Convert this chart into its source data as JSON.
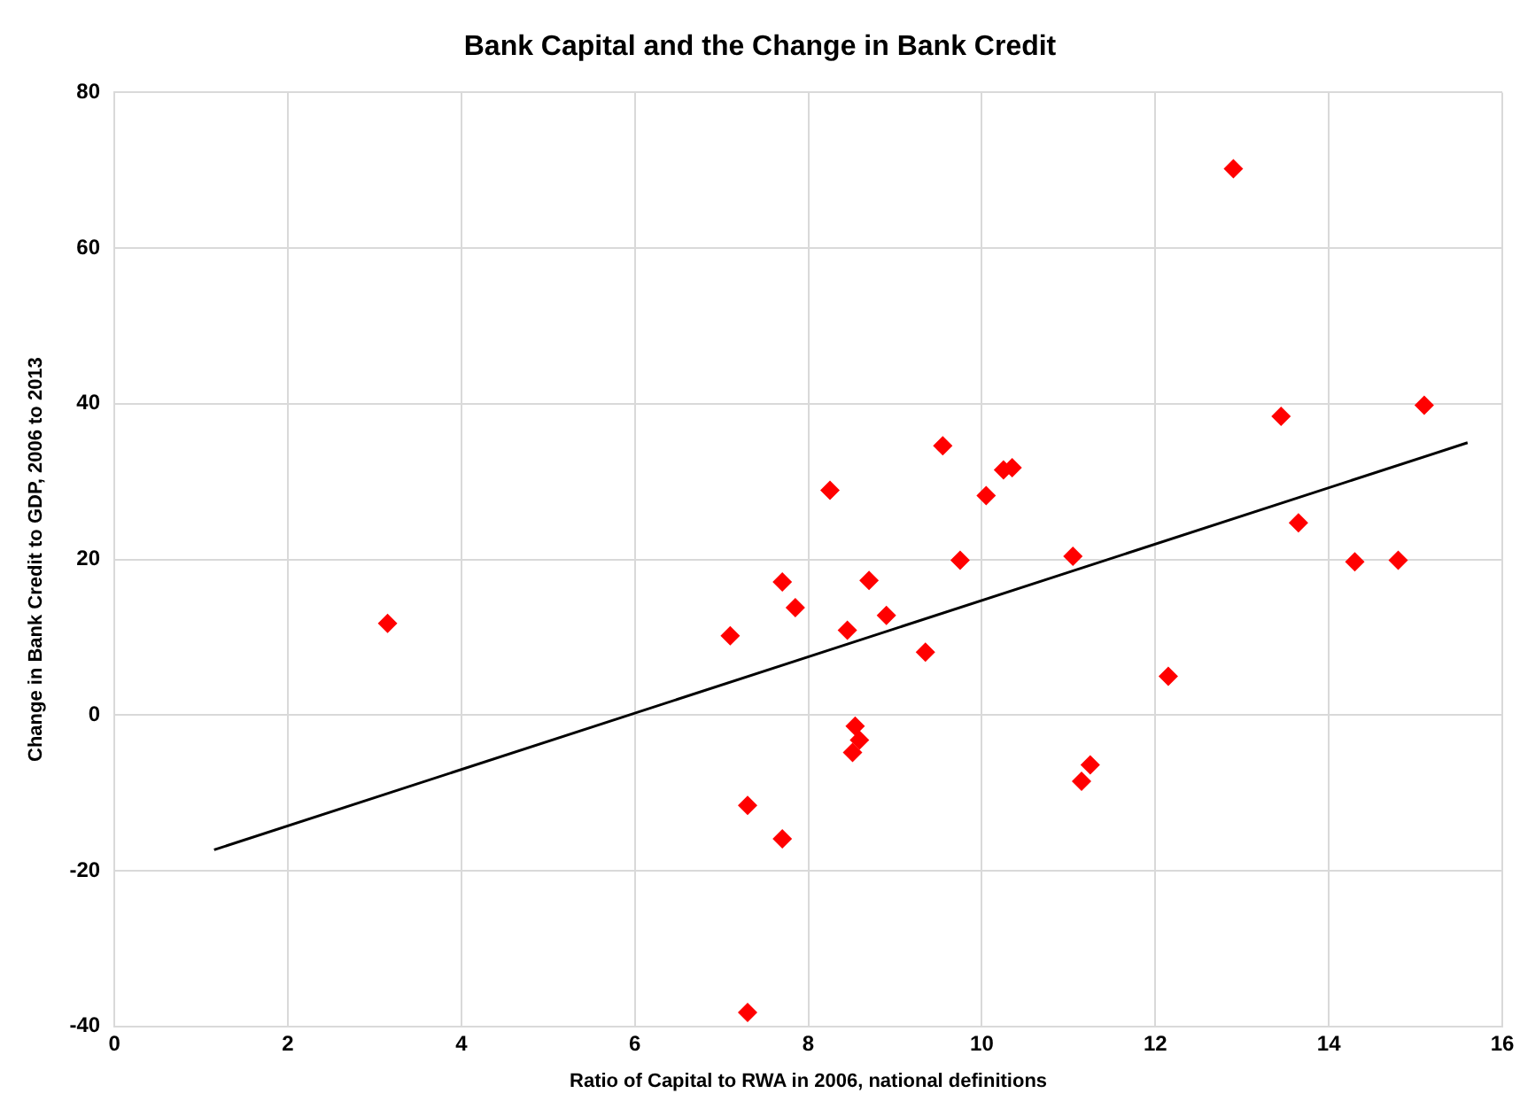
{
  "chart_data": {
    "type": "scatter",
    "title": "Bank Capital and the Change in Bank Credit",
    "xlabel": "Ratio of Capital to RWA in 2006, national definitions",
    "ylabel": "Change in Bank Credit to GDP, 2006 to 2013",
    "xlim": [
      0,
      16
    ],
    "xticks": [
      0,
      2,
      4,
      6,
      8,
      10,
      12,
      14,
      16
    ],
    "ylim": [
      -40,
      80
    ],
    "yticks": [
      -40,
      -20,
      0,
      20,
      40,
      60,
      80
    ],
    "grid": true,
    "legend": false,
    "marker": "diamond",
    "series": [
      {
        "type": "scatter",
        "color": "#ff0000",
        "x": [
          3.15,
          7.1,
          7.3,
          7.3,
          7.7,
          7.7,
          7.85,
          8.25,
          8.45,
          8.54,
          8.59,
          8.51,
          8.7,
          8.9,
          9.35,
          9.55,
          9.75,
          10.05,
          10.25,
          10.35,
          11.05,
          11.15,
          11.25,
          12.15,
          12.9,
          13.45,
          13.65,
          14.3,
          14.8,
          15.1
        ],
        "values": [
          11.8,
          10.2,
          -11.6,
          -38.2,
          17.1,
          -15.9,
          13.8,
          28.9,
          10.9,
          -1.4,
          -3.2,
          -4.8,
          17.3,
          12.8,
          8.1,
          34.6,
          19.9,
          28.2,
          31.5,
          31.8,
          20.4,
          -8.5,
          -6.4,
          5.0,
          70.2,
          38.4,
          24.7,
          19.7,
          19.9,
          39.8
        ]
      },
      {
        "type": "line",
        "color": "#000000",
        "marker": "none",
        "x": [
          1.15,
          15.6
        ],
        "values": [
          -17.3,
          35
        ]
      }
    ]
  }
}
